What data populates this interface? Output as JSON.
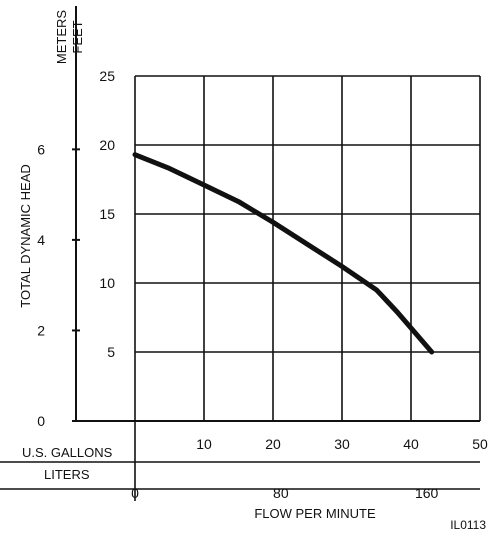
{
  "chart_data": {
    "type": "line",
    "xlabel": "FLOW PER MINUTE",
    "ylabel": "TOTAL DYNAMIC HEAD",
    "y_units": [
      "METERS",
      "FEET"
    ],
    "x_units": [
      "U.S. GALLONS",
      "LITERS"
    ],
    "figure_code": "IL0113",
    "xlim": [
      0,
      50
    ],
    "ylim_feet": [
      0,
      25
    ],
    "ylim_meters": [
      0,
      7.62
    ],
    "grid": true,
    "gallon_ticks": [
      "10",
      "20",
      "30",
      "40",
      "50"
    ],
    "gallon_tick_values": [
      10,
      20,
      30,
      40,
      50
    ],
    "liter_ticks": [
      "0",
      "80",
      "160"
    ],
    "liter_tick_values": [
      0,
      80,
      160
    ],
    "feet_ticks": [
      "5",
      "10",
      "15",
      "20",
      "25"
    ],
    "feet_tick_values": [
      5,
      10,
      15,
      20,
      25
    ],
    "meter_ticks": [
      "0",
      "2",
      "4",
      "6"
    ],
    "meter_tick_values": [
      0,
      2,
      4,
      6
    ],
    "series": [
      {
        "x": [
          0,
          5,
          10,
          15,
          20,
          25,
          30,
          35,
          38,
          43
        ],
        "y": [
          19.3,
          18.3,
          17.1,
          15.9,
          14.4,
          12.8,
          11.2,
          9.5,
          7.9,
          5.0
        ]
      }
    ],
    "line_color": "#111111"
  }
}
